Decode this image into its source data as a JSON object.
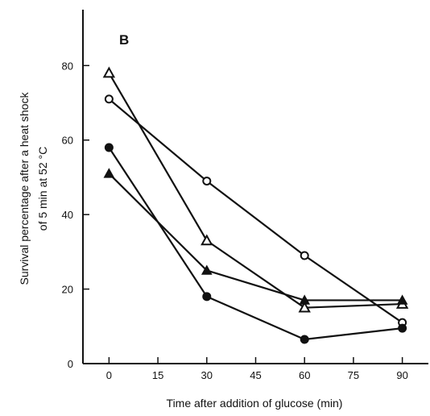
{
  "chart_data": {
    "type": "line",
    "panel_label": "B",
    "xlabel": "Time after addition of glucose (min)",
    "ylabel_lines": [
      "Survival percentage after a heat shock",
      "of 5 min at 52 °C"
    ],
    "x_ticks": [
      0,
      15,
      30,
      45,
      60,
      75,
      90
    ],
    "y_ticks": [
      0,
      20,
      40,
      60,
      80
    ],
    "xlim": [
      -8,
      98
    ],
    "ylim": [
      0,
      95
    ],
    "grid": false,
    "legend": "none",
    "series": [
      {
        "marker": "open-triangle",
        "x": [
          0,
          30,
          60,
          90
        ],
        "y": [
          78,
          33,
          15,
          16
        ]
      },
      {
        "marker": "open-circle",
        "x": [
          0,
          30,
          60,
          90
        ],
        "y": [
          71,
          49,
          29,
          11
        ]
      },
      {
        "marker": "filled-circle",
        "x": [
          0,
          30,
          60,
          90
        ],
        "y": [
          58,
          18,
          6.5,
          9.5
        ]
      },
      {
        "marker": "filled-triangle",
        "x": [
          0,
          30,
          60,
          90
        ],
        "y": [
          51,
          25,
          17,
          17
        ]
      }
    ],
    "colors": {
      "ink": "#111111",
      "background": "#ffffff"
    }
  }
}
